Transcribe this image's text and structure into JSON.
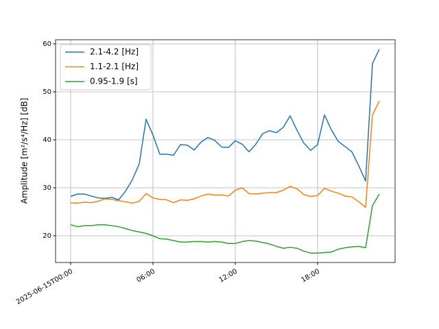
{
  "chart_data": {
    "type": "line",
    "ylabel": "Amplitude [m²/s⁴/Hz] [dB]",
    "x": [
      "2025-06-15T00:00",
      "2025-06-15T00:30",
      "2025-06-15T01:00",
      "2025-06-15T01:30",
      "2025-06-15T02:00",
      "2025-06-15T02:30",
      "2025-06-15T03:00",
      "2025-06-15T03:30",
      "2025-06-15T04:00",
      "2025-06-15T04:30",
      "2025-06-15T05:00",
      "2025-06-15T05:30",
      "2025-06-15T06:00",
      "2025-06-15T06:30",
      "2025-06-15T07:00",
      "2025-06-15T07:30",
      "2025-06-15T08:00",
      "2025-06-15T08:30",
      "2025-06-15T09:00",
      "2025-06-15T09:30",
      "2025-06-15T10:00",
      "2025-06-15T10:30",
      "2025-06-15T11:00",
      "2025-06-15T11:30",
      "2025-06-15T12:00",
      "2025-06-15T12:30",
      "2025-06-15T13:00",
      "2025-06-15T13:30",
      "2025-06-15T14:00",
      "2025-06-15T14:30",
      "2025-06-15T15:00",
      "2025-06-15T15:30",
      "2025-06-15T16:00",
      "2025-06-15T16:30",
      "2025-06-15T17:00",
      "2025-06-15T17:30",
      "2025-06-15T18:00",
      "2025-06-15T18:30",
      "2025-06-15T19:00",
      "2025-06-15T19:30",
      "2025-06-15T20:00",
      "2025-06-15T20:30",
      "2025-06-15T21:00",
      "2025-06-15T21:30",
      "2025-06-15T22:00",
      "2025-06-15T22:30"
    ],
    "series": [
      {
        "name": "2.1-4.2 [Hz]",
        "color": "#1f77b4",
        "values": [
          28.2,
          28.7,
          28.7,
          28.3,
          27.9,
          27.8,
          28.0,
          27.5,
          29.3,
          31.7,
          35.0,
          44.3,
          41.0,
          37.0,
          37.0,
          36.8,
          39.0,
          38.9,
          37.9,
          39.5,
          40.5,
          39.9,
          38.5,
          38.4,
          39.8,
          39.1,
          37.5,
          39.1,
          41.3,
          41.9,
          41.5,
          42.6,
          45.0,
          42.0,
          39.3,
          37.8,
          39.0,
          45.2,
          42.1,
          39.7,
          38.6,
          37.5,
          34.6,
          31.4,
          55.9,
          58.9
        ]
      },
      {
        "name": "1.1-2.1 [Hz]",
        "color": "#ff7f0e",
        "values": [
          26.9,
          26.8,
          27.0,
          26.9,
          27.2,
          27.7,
          27.6,
          27.3,
          27.1,
          26.8,
          27.2,
          28.8,
          27.9,
          27.6,
          27.5,
          26.9,
          27.5,
          27.4,
          27.7,
          28.3,
          28.7,
          28.5,
          28.5,
          28.3,
          29.5,
          30.0,
          28.8,
          28.7,
          28.9,
          29.0,
          29.0,
          29.5,
          30.3,
          29.8,
          28.6,
          28.2,
          28.4,
          29.9,
          29.3,
          28.9,
          28.3,
          28.1,
          27.1,
          25.9,
          45.2,
          48.1
        ]
      },
      {
        "name": "0.95-1.9 [s]",
        "color": "#2ca02c",
        "values": [
          22.3,
          21.9,
          22.1,
          22.1,
          22.3,
          22.3,
          22.1,
          21.9,
          21.5,
          21.1,
          20.8,
          20.5,
          20.0,
          19.4,
          19.3,
          19.0,
          18.7,
          18.7,
          18.8,
          18.8,
          18.7,
          18.8,
          18.7,
          18.4,
          18.4,
          18.8,
          19.0,
          18.9,
          18.6,
          18.3,
          17.8,
          17.4,
          17.6,
          17.4,
          16.8,
          16.4,
          16.4,
          16.5,
          16.6,
          17.2,
          17.5,
          17.7,
          17.8,
          17.5,
          26.3,
          28.7
        ]
      }
    ],
    "xlim": [
      "2025-06-14T22:54",
      "2025-06-15T23:39"
    ],
    "xticks": [
      "2025-06-15T00:00",
      {
        "value": "2025-06-15T06:00",
        "label": "06:00"
      },
      {
        "value": "2025-06-15T12:00",
        "label": "12:00"
      },
      {
        "value": "2025-06-15T18:00",
        "label": "18:00"
      }
    ],
    "ylim": [
      14.43,
      60.86
    ],
    "yticks": [
      20,
      30,
      40,
      50,
      60
    ],
    "grid": true,
    "legend": "upper left"
  }
}
